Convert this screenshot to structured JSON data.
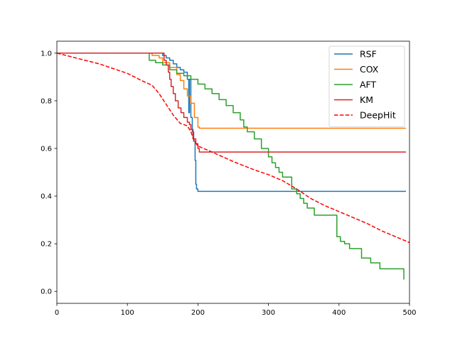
{
  "chart_data": {
    "type": "line",
    "title": "",
    "xlabel": "",
    "ylabel": "",
    "xlim": [
      0,
      500
    ],
    "ylim": [
      -0.05,
      1.05
    ],
    "xticks": [
      0,
      100,
      200,
      300,
      400,
      500
    ],
    "yticks": [
      0.0,
      0.2,
      0.4,
      0.6,
      0.8,
      1.0
    ],
    "xtick_labels": [
      "0",
      "100",
      "200",
      "300",
      "400",
      "500"
    ],
    "ytick_labels": [
      "0.0",
      "0.2",
      "0.4",
      "0.6",
      "0.8",
      "1.0"
    ],
    "grid": false,
    "legend_position": "top-right",
    "series": [
      {
        "name": "RSF",
        "color": "#1f77b4",
        "style": "step",
        "points": [
          [
            0,
            1.0
          ],
          [
            145,
            1.0
          ],
          [
            150,
            0.99
          ],
          [
            155,
            0.98
          ],
          [
            160,
            0.97
          ],
          [
            165,
            0.955
          ],
          [
            170,
            0.94
          ],
          [
            175,
            0.93
          ],
          [
            180,
            0.92
          ],
          [
            185,
            0.89
          ],
          [
            187,
            0.75
          ],
          [
            188,
            0.89
          ],
          [
            190,
            0.73
          ],
          [
            192,
            0.67
          ],
          [
            194,
            0.63
          ],
          [
            196,
            0.55
          ],
          [
            197,
            0.45
          ],
          [
            198,
            0.43
          ],
          [
            200,
            0.42
          ],
          [
            495,
            0.42
          ]
        ]
      },
      {
        "name": "COX",
        "color": "#ff7f0e",
        "style": "step",
        "points": [
          [
            0,
            1.0
          ],
          [
            130,
            1.0
          ],
          [
            135,
            0.99
          ],
          [
            145,
            0.98
          ],
          [
            150,
            0.96
          ],
          [
            160,
            0.94
          ],
          [
            170,
            0.91
          ],
          [
            175,
            0.885
          ],
          [
            180,
            0.85
          ],
          [
            185,
            0.82
          ],
          [
            190,
            0.79
          ],
          [
            195,
            0.73
          ],
          [
            200,
            0.69
          ],
          [
            202,
            0.685
          ],
          [
            495,
            0.685
          ]
        ]
      },
      {
        "name": "AFT",
        "color": "#2ca02c",
        "style": "step",
        "points": [
          [
            0,
            1.0
          ],
          [
            130,
            1.0
          ],
          [
            131,
            0.97
          ],
          [
            140,
            0.96
          ],
          [
            150,
            0.95
          ],
          [
            160,
            0.93
          ],
          [
            170,
            0.915
          ],
          [
            180,
            0.905
          ],
          [
            190,
            0.89
          ],
          [
            200,
            0.87
          ],
          [
            210,
            0.85
          ],
          [
            220,
            0.83
          ],
          [
            230,
            0.805
          ],
          [
            240,
            0.78
          ],
          [
            250,
            0.75
          ],
          [
            260,
            0.72
          ],
          [
            265,
            0.69
          ],
          [
            270,
            0.67
          ],
          [
            280,
            0.64
          ],
          [
            290,
            0.6
          ],
          [
            300,
            0.565
          ],
          [
            305,
            0.54
          ],
          [
            310,
            0.52
          ],
          [
            315,
            0.5
          ],
          [
            320,
            0.48
          ],
          [
            333,
            0.43
          ],
          [
            340,
            0.41
          ],
          [
            345,
            0.39
          ],
          [
            350,
            0.37
          ],
          [
            355,
            0.35
          ],
          [
            365,
            0.32
          ],
          [
            395,
            0.32
          ],
          [
            397,
            0.23
          ],
          [
            402,
            0.21
          ],
          [
            408,
            0.2
          ],
          [
            415,
            0.18
          ],
          [
            432,
            0.14
          ],
          [
            445,
            0.12
          ],
          [
            458,
            0.095
          ],
          [
            492,
            0.095
          ],
          [
            492,
            0.05
          ]
        ]
      },
      {
        "name": "KM",
        "color": "#d62728",
        "style": "step",
        "points": [
          [
            0,
            1.0
          ],
          [
            150,
            1.0
          ],
          [
            152,
            0.97
          ],
          [
            155,
            0.95
          ],
          [
            158,
            0.92
          ],
          [
            160,
            0.89
          ],
          [
            162,
            0.86
          ],
          [
            165,
            0.83
          ],
          [
            168,
            0.8
          ],
          [
            172,
            0.77
          ],
          [
            176,
            0.75
          ],
          [
            180,
            0.73
          ],
          [
            185,
            0.71
          ],
          [
            188,
            0.7
          ],
          [
            190,
            0.68
          ],
          [
            193,
            0.64
          ],
          [
            197,
            0.62
          ],
          [
            200,
            0.6
          ],
          [
            202,
            0.585
          ],
          [
            495,
            0.585
          ]
        ]
      },
      {
        "name": "DeepHit",
        "color": "#ff0000",
        "style": "dashed",
        "points": [
          [
            0,
            1.0
          ],
          [
            20,
            0.985
          ],
          [
            40,
            0.97
          ],
          [
            60,
            0.955
          ],
          [
            80,
            0.935
          ],
          [
            100,
            0.915
          ],
          [
            120,
            0.885
          ],
          [
            135,
            0.865
          ],
          [
            145,
            0.83
          ],
          [
            155,
            0.785
          ],
          [
            165,
            0.74
          ],
          [
            175,
            0.705
          ],
          [
            185,
            0.695
          ],
          [
            190,
            0.67
          ],
          [
            195,
            0.63
          ],
          [
            200,
            0.61
          ],
          [
            220,
            0.585
          ],
          [
            250,
            0.545
          ],
          [
            280,
            0.51
          ],
          [
            300,
            0.49
          ],
          [
            320,
            0.465
          ],
          [
            340,
            0.43
          ],
          [
            360,
            0.39
          ],
          [
            380,
            0.36
          ],
          [
            400,
            0.335
          ],
          [
            420,
            0.31
          ],
          [
            440,
            0.285
          ],
          [
            460,
            0.255
          ],
          [
            480,
            0.23
          ],
          [
            500,
            0.205
          ]
        ]
      }
    ]
  }
}
